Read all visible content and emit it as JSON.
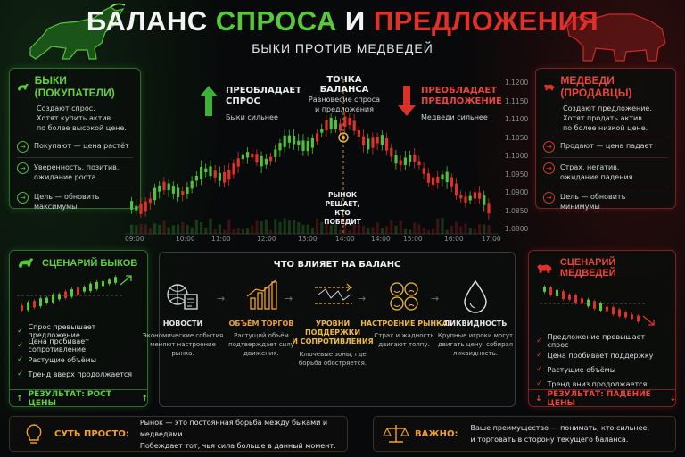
{
  "header": {
    "title_part1": "БАЛАНС",
    "title_part2": "СПРОСА",
    "title_part3": "И",
    "title_part4": "ПРЕДЛОЖЕНИЯ",
    "subtitle": "БЫКИ ПРОТИВ МЕДВЕДЕЙ"
  },
  "bulls": {
    "title": "БЫКИ (ПОКУПАТЕЛИ)",
    "intro": [
      "Создают спрос.",
      "Хотят купить актив",
      "по более высокой цене."
    ],
    "items": [
      {
        "text": [
          "Покупают — цена растёт"
        ]
      },
      {
        "text": [
          "Уверенность, позитив,",
          "ожидание роста"
        ]
      },
      {
        "text": [
          "Цель — обновить",
          "максимумы"
        ]
      }
    ]
  },
  "bears": {
    "title": "МЕДВЕДИ (ПРОДАВЦЫ)",
    "intro": [
      "Создают предложение.",
      "Хотят продать актив",
      "по более низкой цене."
    ],
    "items": [
      {
        "text": [
          "Продают — цена падает"
        ]
      },
      {
        "text": [
          "Страх, негатив,",
          "ожидание падения"
        ]
      },
      {
        "text": [
          "Цель — обновить",
          "минимумы"
        ]
      }
    ]
  },
  "chart": {
    "left_heading": [
      "ПРЕОБЛАДАЕТ",
      "СПРОС"
    ],
    "left_sub": "Быки сильнее",
    "center_heading": "ТОЧКА БАЛАНСА",
    "center_sub": [
      "Равновесие спроса",
      "и предложения"
    ],
    "center_note": [
      "РЫНОК",
      "РЕШАЕТ,",
      "КТО ПОБЕДИТ"
    ],
    "right_heading": [
      "ПРЕОБЛАДАЕТ",
      "ПРЕДЛОЖЕНИЕ"
    ],
    "right_sub": "Медведи сильнее",
    "y_ticks": [
      "1.1200",
      "1.1150",
      "1.1100",
      "1.1050",
      "1.1000",
      "1.0950",
      "1.0900",
      "1.0850",
      "1.0800"
    ],
    "x_ticks": [
      "09:00",
      "10:00",
      "11:00",
      "12:00",
      "13:00",
      "14:00",
      "14:00",
      "15:00",
      "16:00",
      "17:00"
    ],
    "colors": {
      "bull": "#4fc23a",
      "bear": "#e0302a",
      "balance": "#f0b840"
    }
  },
  "bull_scenario": {
    "title": "СЦЕНАРИЙ БЫКОВ",
    "checks": [
      "Спрос превышает предложение",
      "Цена пробивает сопротивление",
      "Растущие объёмы",
      "Тренд вверх продолжается"
    ],
    "result": "РЕЗУЛЬТАТ: РОСТ ЦЕНЫ"
  },
  "bear_scenario": {
    "title": "СЦЕНАРИЙ МЕДВЕДЕЙ",
    "checks": [
      "Предложение превышает спрос",
      "Цена пробивает поддержку",
      "Растущие объёмы",
      "Тренд вниз продолжается"
    ],
    "result": "РЕЗУЛЬТАТ: ПАДЕНИЕ ЦЕНЫ"
  },
  "factors": {
    "title": "ЧТО ВЛИЯЕТ НА БАЛАНС",
    "items": [
      {
        "label": "НОВОСТИ",
        "label_color": "#e8e8e8",
        "desc": [
          "Экономические события",
          "меняют настроение",
          "рынка."
        ],
        "icon": "news-icon"
      },
      {
        "label": "ОБЪЁМ ТОРГОВ",
        "label_color": "#f0a030",
        "desc": [
          "Растущий объём",
          "подтверждает силу",
          "движения."
        ],
        "icon": "volume-icon"
      },
      {
        "label": "УРОВНИ ПОДДЕРЖКИ\nИ СОПРОТИВЛЕНИЯ",
        "label_color": "#f0b840",
        "desc": [
          "Ключевые зоны, где",
          "борьба обостряется."
        ],
        "icon": "levels-icon"
      },
      {
        "label": "НАСТРОЕНИЕ РЫНКА",
        "label_color": "#f0b840",
        "desc": [
          "Страх и жадность",
          "двигают толпу."
        ],
        "icon": "sentiment-icon"
      },
      {
        "label": "ЛИКВИДНОСТЬ",
        "label_color": "#e8e8e8",
        "desc": [
          "Крупные игроки могут",
          "двигать цену, собирая",
          "ликвидность."
        ],
        "icon": "liquidity-icon"
      }
    ]
  },
  "footer": {
    "left_label": "СУТЬ ПРОСТО:",
    "left_text": [
      "Рынок — это постоянная борьба между быками и медведями.",
      "Побеждает тот, чья сила больше в данный момент."
    ],
    "right_label": "ВАЖНО:",
    "right_text": [
      "Ваше преимущество — понимать, кто сильнее,",
      "и торговать в сторону текущего баланса."
    ]
  }
}
